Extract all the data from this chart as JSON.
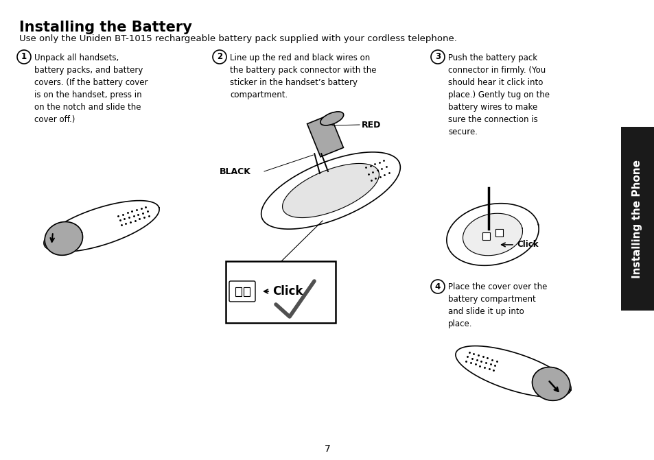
{
  "title": "Installing the Battery",
  "subtitle": "Use only the Uniden BT-1015 rechargeable battery pack supplied with your cordless telephone.",
  "step1_num": "1",
  "step1_text": "Unpack all handsets,\nbattery packs, and battery\ncovers. (If the battery cover\nis on the handset, press in\non the notch and slide the\ncover off.)",
  "step2_num": "2",
  "step2_text": "Line up the red and black wires on\nthe battery pack connector with the\nsticker in the handset’s battery\ncompartment.",
  "step3_num": "3",
  "step3_text": "Push the battery pack\nconnector in firmly. (You\nshould hear it click into\nplace.) Gently tug on the\nbattery wires to make\nsure the connection is\nsecure.",
  "step4_num": "4",
  "step4_text": "Place the cover over the\nbattery compartment\nand slide it up into\nplace.",
  "red_label": "RED",
  "black_label": "BLACK",
  "click_label": "←Click",
  "sidebar_text": "Installing the Phone",
  "page_number": "7",
  "bg_color": "#ffffff",
  "text_color": "#000000",
  "sidebar_bg": "#1a1a1a",
  "sidebar_text_color": "#ffffff",
  "gray_color": "#a8a8a8",
  "light_gray": "#d8d8d8",
  "title_fontsize": 15,
  "subtitle_fontsize": 9.5,
  "step_fontsize": 8.5,
  "label_fontsize": 9,
  "sidebar_fontsize": 11,
  "page_fontsize": 10
}
